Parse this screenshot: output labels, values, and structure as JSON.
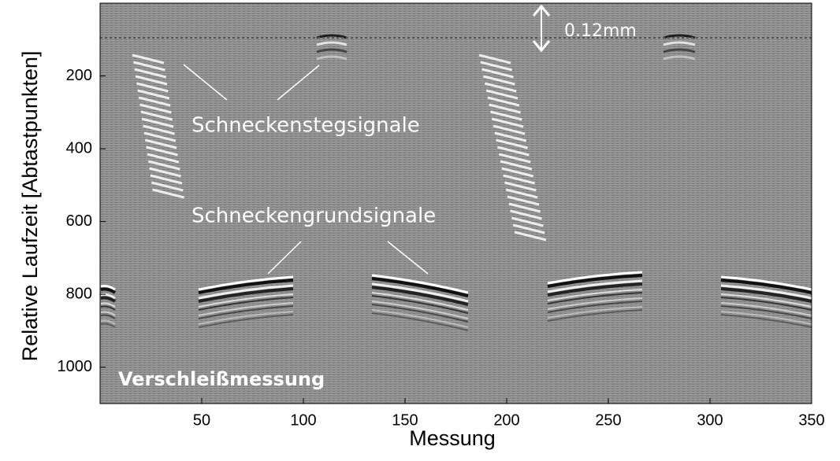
{
  "chart_data": {
    "type": "image",
    "xlabel": "Messung",
    "ylabel": "Relative Laufzeit [Abtastpunkten]",
    "xlim": [
      0,
      350
    ],
    "ylim": [
      0,
      1100
    ],
    "xticks": [
      50,
      100,
      150,
      200,
      250,
      300,
      350
    ],
    "yticks": [
      200,
      400,
      600,
      800,
      1000
    ],
    "annotations": [
      "0.12mm",
      "Schneckenstegsignale",
      "Schneckengrundsignale",
      "Verschleißmessung"
    ]
  }
}
